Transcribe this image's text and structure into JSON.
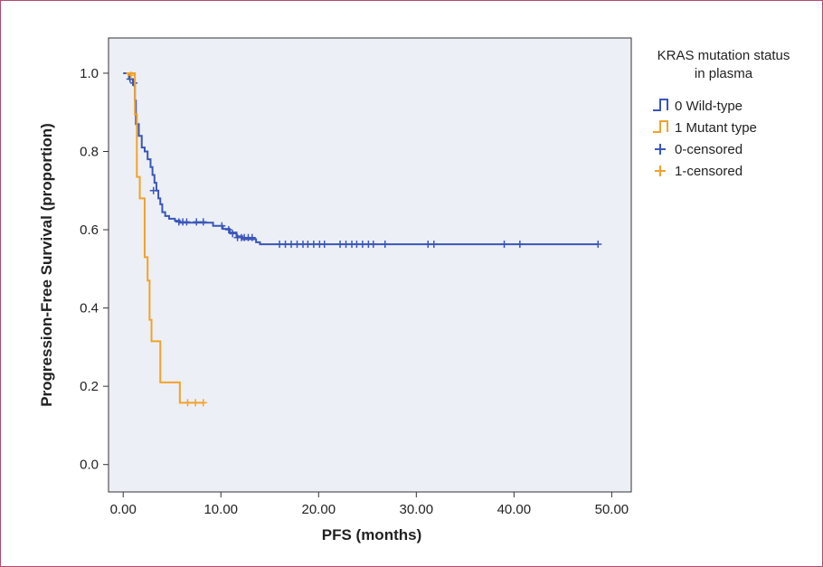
{
  "chart_data": {
    "type": "line",
    "subtype": "kaplan-meier",
    "xlabel": "PFS (months)",
    "ylabel": "Progression-Free Survival (proportion)",
    "xlim": [
      -1.5,
      52
    ],
    "ylim": [
      -0.07,
      1.09
    ],
    "xticks": [
      0,
      10,
      20,
      30,
      40,
      50
    ],
    "xtick_labels": [
      "0.00",
      "10.00",
      "20.00",
      "30.00",
      "40.00",
      "50.00"
    ],
    "yticks": [
      0.0,
      0.2,
      0.4,
      0.6,
      0.8,
      1.0
    ],
    "ytick_labels": [
      "0.0",
      "0.2",
      "0.4",
      "0.6",
      "0.8",
      "1.0"
    ],
    "grid": false,
    "legend": {
      "title": [
        "KRAS mutation status",
        "in plasma"
      ],
      "position": "right",
      "entries": [
        "0 Wild-type",
        "1 Mutant type",
        "0-censored",
        "1-censored"
      ]
    },
    "colors": {
      "wild": "#3a56b8",
      "mutant": "#f2a22a",
      "plot_bg": "#eceff5",
      "axis": "#333333"
    },
    "series": [
      {
        "name": "0 Wild-type",
        "step_points": [
          [
            0,
            1.0
          ],
          [
            0.6,
            0.985
          ],
          [
            1.0,
            0.97
          ],
          [
            1.2,
            0.93
          ],
          [
            1.3,
            0.87
          ],
          [
            1.6,
            0.84
          ],
          [
            1.9,
            0.81
          ],
          [
            2.2,
            0.8
          ],
          [
            2.5,
            0.78
          ],
          [
            2.8,
            0.76
          ],
          [
            3.0,
            0.74
          ],
          [
            3.2,
            0.72
          ],
          [
            3.4,
            0.7
          ],
          [
            3.6,
            0.68
          ],
          [
            3.8,
            0.665
          ],
          [
            4.0,
            0.645
          ],
          [
            4.3,
            0.635
          ],
          [
            4.7,
            0.628
          ],
          [
            5.3,
            0.623
          ],
          [
            5.8,
            0.618
          ],
          [
            9.2,
            0.61
          ],
          [
            10.2,
            0.602
          ],
          [
            10.9,
            0.593
          ],
          [
            11.6,
            0.583
          ],
          [
            12.2,
            0.576
          ],
          [
            13.6,
            0.568
          ],
          [
            14.0,
            0.563
          ],
          [
            48.6,
            0.563
          ]
        ],
        "censored": [
          [
            0.7,
            0.985
          ],
          [
            1.1,
            0.975
          ],
          [
            3.1,
            0.7
          ],
          [
            5.7,
            0.62
          ],
          [
            6.1,
            0.62
          ],
          [
            6.5,
            0.62
          ],
          [
            7.5,
            0.62
          ],
          [
            8.2,
            0.62
          ],
          [
            10.1,
            0.61
          ],
          [
            10.8,
            0.6
          ],
          [
            11.2,
            0.59
          ],
          [
            11.7,
            0.58
          ],
          [
            12.1,
            0.58
          ],
          [
            12.4,
            0.58
          ],
          [
            12.8,
            0.58
          ],
          [
            13.2,
            0.58
          ],
          [
            16.0,
            0.563
          ],
          [
            16.6,
            0.563
          ],
          [
            17.2,
            0.563
          ],
          [
            17.8,
            0.563
          ],
          [
            18.4,
            0.563
          ],
          [
            18.9,
            0.563
          ],
          [
            19.5,
            0.563
          ],
          [
            20.1,
            0.563
          ],
          [
            20.6,
            0.563
          ],
          [
            22.2,
            0.563
          ],
          [
            22.8,
            0.563
          ],
          [
            23.4,
            0.563
          ],
          [
            23.9,
            0.563
          ],
          [
            24.5,
            0.563
          ],
          [
            25.1,
            0.563
          ],
          [
            25.6,
            0.563
          ],
          [
            26.8,
            0.563
          ],
          [
            31.2,
            0.563
          ],
          [
            31.8,
            0.563
          ],
          [
            39.0,
            0.563
          ],
          [
            40.6,
            0.563
          ],
          [
            48.6,
            0.563
          ]
        ]
      },
      {
        "name": "1 Mutant type",
        "step_points": [
          [
            0.3,
            1.0
          ],
          [
            1.2,
            0.895
          ],
          [
            1.4,
            0.735
          ],
          [
            1.7,
            0.68
          ],
          [
            2.2,
            0.53
          ],
          [
            2.5,
            0.47
          ],
          [
            2.7,
            0.37
          ],
          [
            2.9,
            0.315
          ],
          [
            3.8,
            0.21
          ],
          [
            5.8,
            0.158
          ],
          [
            8.2,
            0.158
          ]
        ],
        "censored": [
          [
            0.8,
            0.995
          ],
          [
            6.6,
            0.158
          ],
          [
            7.4,
            0.158
          ],
          [
            8.2,
            0.158
          ]
        ]
      }
    ]
  }
}
